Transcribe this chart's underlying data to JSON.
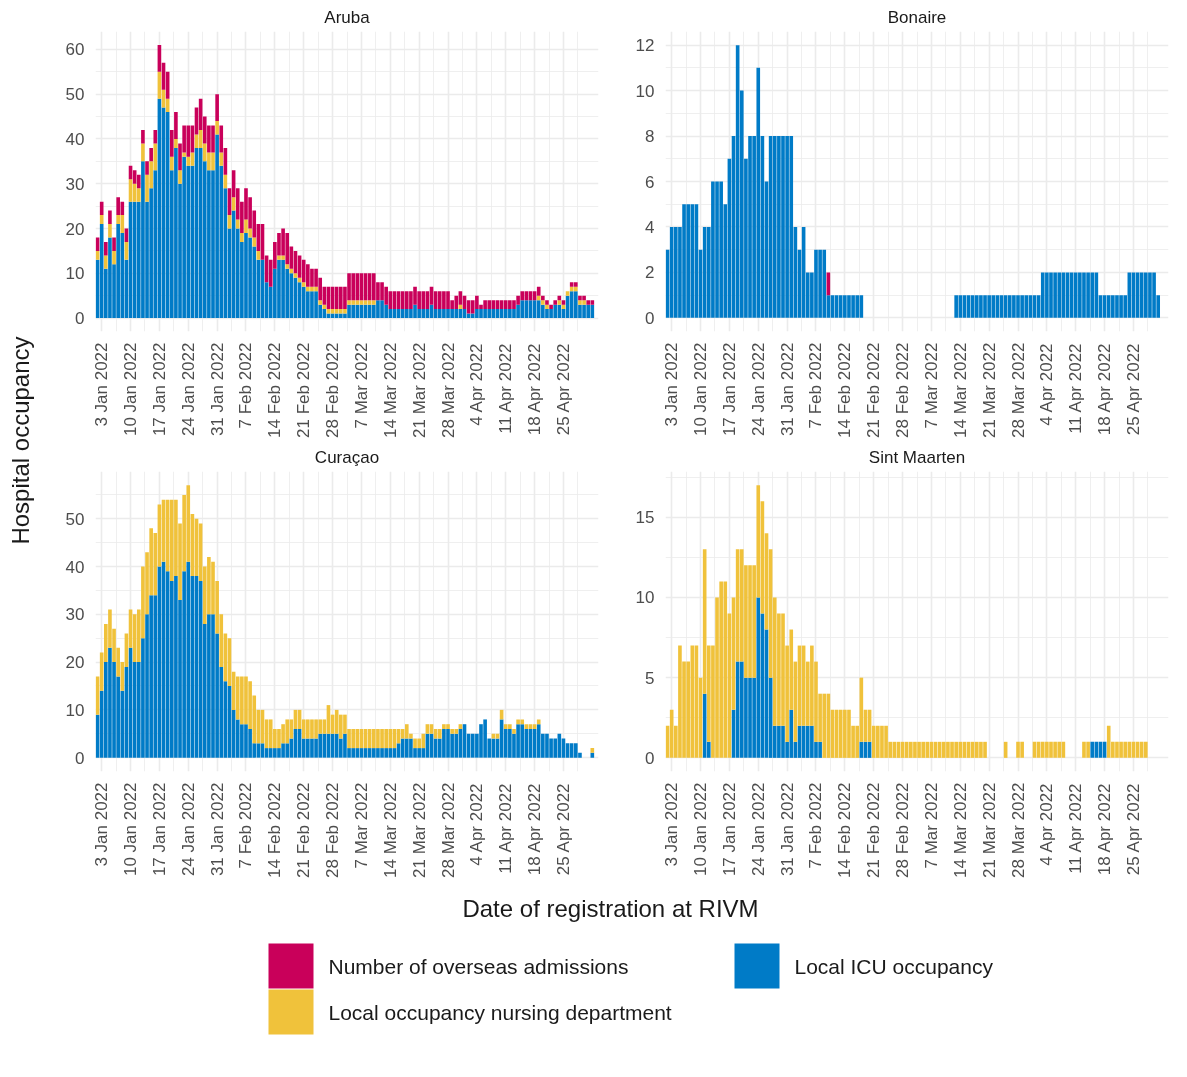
{
  "chart_data": [
    {
      "type": "bar",
      "title": "Aruba",
      "xlabel": "Date of registration at RIVM",
      "ylabel": "Hospital occupancy",
      "stacked": true,
      "grid": true,
      "legend": "bottom",
      "xlim": [
        "2022-01-01T12:00",
        "2022-05-03T12:00"
      ],
      "ylim": [
        -3,
        64
      ],
      "yticks": [
        0,
        10,
        20,
        30,
        40,
        50,
        60
      ],
      "xticks": [
        {
          "value": "2022-01-03",
          "label": "3 Jan 2022"
        },
        {
          "value": "2022-01-10",
          "label": "10 Jan 2022"
        },
        {
          "value": "2022-01-17",
          "label": "17 Jan 2022"
        },
        {
          "value": "2022-01-24",
          "label": "24 Jan 2022"
        },
        {
          "value": "2022-01-31",
          "label": "31 Jan 2022"
        },
        {
          "value": "2022-02-07",
          "label": "7 Feb 2022"
        },
        {
          "value": "2022-02-14",
          "label": "14 Feb 2022"
        },
        {
          "value": "2022-02-21",
          "label": "21 Feb 2022"
        },
        {
          "value": "2022-02-28",
          "label": "28 Feb 2022"
        },
        {
          "value": "2022-03-07",
          "label": "7 Mar 2022"
        },
        {
          "value": "2022-03-14",
          "label": "14 Mar 2022"
        },
        {
          "value": "2022-03-21",
          "label": "21 Mar 2022"
        },
        {
          "value": "2022-03-28",
          "label": "28 Mar 2022"
        },
        {
          "value": "2022-04-04",
          "label": "4 Apr 2022"
        },
        {
          "value": "2022-04-11",
          "label": "11 Apr 2022"
        },
        {
          "value": "2022-04-18",
          "label": "18 Apr 2022"
        },
        {
          "value": "2022-04-25",
          "label": "25 Apr 2022"
        }
      ],
      "x": [
        "2022-01-02",
        "2022-01-03",
        "2022-01-04",
        "2022-01-05",
        "2022-01-06",
        "2022-01-07",
        "2022-01-08",
        "2022-01-09",
        "2022-01-10",
        "2022-01-11",
        "2022-01-12",
        "2022-01-13",
        "2022-01-14",
        "2022-01-15",
        "2022-01-16",
        "2022-01-17",
        "2022-01-18",
        "2022-01-19",
        "2022-01-20",
        "2022-01-21",
        "2022-01-22",
        "2022-01-23",
        "2022-01-24",
        "2022-01-25",
        "2022-01-26",
        "2022-01-27",
        "2022-01-28",
        "2022-01-29",
        "2022-01-30",
        "2022-01-31",
        "2022-02-01",
        "2022-02-02",
        "2022-02-03",
        "2022-02-04",
        "2022-02-05",
        "2022-02-06",
        "2022-02-07",
        "2022-02-08",
        "2022-02-09",
        "2022-02-10",
        "2022-02-11",
        "2022-02-12",
        "2022-02-13",
        "2022-02-14",
        "2022-02-15",
        "2022-02-16",
        "2022-02-17",
        "2022-02-18",
        "2022-02-19",
        "2022-02-20",
        "2022-02-21",
        "2022-02-22",
        "2022-02-23",
        "2022-02-24",
        "2022-02-25",
        "2022-02-26",
        "2022-02-27",
        "2022-02-28",
        "2022-03-01",
        "2022-03-02",
        "2022-03-03",
        "2022-03-04",
        "2022-03-05",
        "2022-03-06",
        "2022-03-07",
        "2022-03-08",
        "2022-03-09",
        "2022-03-10",
        "2022-03-11",
        "2022-03-12",
        "2022-03-13",
        "2022-03-14",
        "2022-03-15",
        "2022-03-16",
        "2022-03-17",
        "2022-03-18",
        "2022-03-19",
        "2022-03-20",
        "2022-03-21",
        "2022-03-22",
        "2022-03-23",
        "2022-03-24",
        "2022-03-25",
        "2022-03-26",
        "2022-03-27",
        "2022-03-28",
        "2022-03-29",
        "2022-03-30",
        "2022-03-31",
        "2022-04-01",
        "2022-04-02",
        "2022-04-03",
        "2022-04-04",
        "2022-04-05",
        "2022-04-06",
        "2022-04-07",
        "2022-04-08",
        "2022-04-09",
        "2022-04-10",
        "2022-04-11",
        "2022-04-12",
        "2022-04-13",
        "2022-04-14",
        "2022-04-15",
        "2022-04-16",
        "2022-04-17",
        "2022-04-18",
        "2022-04-19",
        "2022-04-20",
        "2022-04-21",
        "2022-04-22",
        "2022-04-23",
        "2022-04-24",
        "2022-04-25",
        "2022-04-26",
        "2022-04-27",
        "2022-04-28",
        "2022-04-29",
        "2022-04-30",
        "2022-05-01",
        "2022-05-02"
      ],
      "series": [
        {
          "name": "Local ICU occupancy",
          "color": "#007bc7",
          "values": [
            13,
            21,
            11,
            18,
            12,
            21,
            19,
            13,
            26,
            26,
            26,
            35,
            26,
            29,
            33,
            49,
            47,
            46,
            33,
            38,
            30,
            36,
            34,
            34,
            38,
            38,
            35,
            33,
            33,
            41,
            34,
            29,
            20,
            24,
            20,
            17,
            19,
            18,
            16,
            13,
            13,
            8,
            7,
            11,
            13,
            13,
            11,
            10,
            9,
            8,
            7,
            6,
            6,
            6,
            3,
            2,
            1,
            1,
            1,
            1,
            1,
            3,
            3,
            3,
            3,
            3,
            3,
            3,
            4,
            4,
            3,
            2,
            2,
            2,
            2,
            2,
            2,
            3,
            2,
            2,
            2,
            3,
            2,
            2,
            2,
            2,
            2,
            2,
            2,
            2,
            1,
            1,
            2,
            2,
            2,
            2,
            2,
            2,
            2,
            2,
            2,
            2,
            3,
            4,
            4,
            4,
            4,
            4,
            3,
            2,
            2,
            3,
            3,
            2,
            5,
            6,
            6,
            3,
            3,
            3,
            3
          ]
        },
        {
          "name": "Local occupancy nursing department",
          "color": "#f0c23b",
          "values": [
            2,
            2,
            3,
            3,
            3,
            2,
            4,
            4,
            5,
            4,
            3,
            4,
            6,
            6,
            6,
            6,
            4,
            3,
            3,
            2,
            3,
            1,
            2,
            3,
            3,
            4,
            4,
            4,
            4,
            3,
            3,
            3,
            3,
            3,
            2,
            2,
            3,
            2,
            2,
            2,
            null,
            null,
            null,
            null,
            1,
            1,
            1,
            1,
            1,
            1,
            1,
            1,
            1,
            1,
            1,
            1,
            1,
            1,
            1,
            1,
            1,
            1,
            1,
            1,
            1,
            1,
            1,
            1,
            null,
            null,
            null,
            null,
            null,
            null,
            null,
            null,
            null,
            null,
            null,
            null,
            null,
            null,
            null,
            null,
            null,
            null,
            null,
            null,
            1,
            null,
            null,
            null,
            null,
            null,
            null,
            null,
            null,
            null,
            null,
            null,
            null,
            null,
            null,
            null,
            null,
            null,
            null,
            1,
            1,
            1,
            null,
            null,
            1,
            1,
            1,
            1,
            1,
            1,
            1,
            null,
            null
          ]
        },
        {
          "name": "Number of overseas admissions",
          "color": "#c9005a",
          "values": [
            3,
            3,
            3,
            3,
            3,
            4,
            3,
            3,
            3,
            3,
            3,
            3,
            3,
            3,
            3,
            6,
            6,
            6,
            6,
            6,
            6,
            6,
            7,
            6,
            6,
            7,
            6,
            6,
            6,
            6,
            6,
            6,
            6,
            6,
            7,
            7,
            7,
            7,
            6,
            6,
            8,
            6,
            6,
            6,
            5,
            6,
            7,
            5,
            5,
            5,
            5,
            5,
            4,
            4,
            5,
            4,
            5,
            5,
            5,
            5,
            5,
            6,
            6,
            6,
            6,
            6,
            6,
            6,
            4,
            4,
            4,
            4,
            4,
            4,
            4,
            4,
            4,
            4,
            4,
            4,
            4,
            4,
            4,
            4,
            4,
            4,
            2,
            3,
            3,
            3,
            3,
            3,
            3,
            1,
            2,
            2,
            2,
            2,
            2,
            2,
            2,
            2,
            2,
            2,
            2,
            2,
            2,
            2,
            1,
            1,
            1,
            1,
            1,
            1,
            null,
            1,
            1,
            1,
            1,
            1,
            1
          ]
        }
      ]
    },
    {
      "type": "bar",
      "title": "Bonaire",
      "stacked": true,
      "grid": true,
      "xlim": [
        "2022-01-01T12:00",
        "2022-05-03T12:00"
      ],
      "ylim": [
        -0.6,
        12.6
      ],
      "yticks": [
        0,
        2,
        4,
        6,
        8,
        10,
        12
      ],
      "xticks": [
        {
          "value": "2022-01-03",
          "label": "3 Jan 2022"
        },
        {
          "value": "2022-01-10",
          "label": "10 Jan 2022"
        },
        {
          "value": "2022-01-17",
          "label": "17 Jan 2022"
        },
        {
          "value": "2022-01-24",
          "label": "24 Jan 2022"
        },
        {
          "value": "2022-01-31",
          "label": "31 Jan 2022"
        },
        {
          "value": "2022-02-07",
          "label": "7 Feb 2022"
        },
        {
          "value": "2022-02-14",
          "label": "14 Feb 2022"
        },
        {
          "value": "2022-02-21",
          "label": "21 Feb 2022"
        },
        {
          "value": "2022-02-28",
          "label": "28 Feb 2022"
        },
        {
          "value": "2022-03-07",
          "label": "7 Mar 2022"
        },
        {
          "value": "2022-03-14",
          "label": "14 Mar 2022"
        },
        {
          "value": "2022-03-21",
          "label": "21 Mar 2022"
        },
        {
          "value": "2022-03-28",
          "label": "28 Mar 2022"
        },
        {
          "value": "2022-04-04",
          "label": "4 Apr 2022"
        },
        {
          "value": "2022-04-11",
          "label": "11 Apr 2022"
        },
        {
          "value": "2022-04-18",
          "label": "18 Apr 2022"
        },
        {
          "value": "2022-04-25",
          "label": "25 Apr 2022"
        }
      ],
      "x": [
        "2022-01-02",
        "2022-01-03",
        "2022-01-04",
        "2022-01-05",
        "2022-01-06",
        "2022-01-07",
        "2022-01-08",
        "2022-01-09",
        "2022-01-10",
        "2022-01-11",
        "2022-01-12",
        "2022-01-13",
        "2022-01-14",
        "2022-01-15",
        "2022-01-16",
        "2022-01-17",
        "2022-01-18",
        "2022-01-19",
        "2022-01-20",
        "2022-01-21",
        "2022-01-22",
        "2022-01-23",
        "2022-01-24",
        "2022-01-25",
        "2022-01-26",
        "2022-01-27",
        "2022-01-28",
        "2022-01-29",
        "2022-01-30",
        "2022-01-31",
        "2022-02-01",
        "2022-02-02",
        "2022-02-03",
        "2022-02-04",
        "2022-02-05",
        "2022-02-06",
        "2022-02-07",
        "2022-02-08",
        "2022-02-09",
        "2022-02-10",
        "2022-02-11",
        "2022-02-12",
        "2022-02-13",
        "2022-02-14",
        "2022-02-15",
        "2022-02-16",
        "2022-02-17",
        "2022-02-18",
        "2022-02-19",
        "2022-02-20",
        "2022-02-21",
        "2022-02-22",
        "2022-02-23",
        "2022-02-24",
        "2022-02-25",
        "2022-02-26",
        "2022-02-27",
        "2022-02-28",
        "2022-03-01",
        "2022-03-02",
        "2022-03-03",
        "2022-03-04",
        "2022-03-05",
        "2022-03-06",
        "2022-03-07",
        "2022-03-08",
        "2022-03-09",
        "2022-03-10",
        "2022-03-11",
        "2022-03-12",
        "2022-03-13",
        "2022-03-14",
        "2022-03-15",
        "2022-03-16",
        "2022-03-17",
        "2022-03-18",
        "2022-03-19",
        "2022-03-20",
        "2022-03-21",
        "2022-03-22",
        "2022-03-23",
        "2022-03-24",
        "2022-03-25",
        "2022-03-26",
        "2022-03-27",
        "2022-03-28",
        "2022-03-29",
        "2022-03-30",
        "2022-03-31",
        "2022-04-01",
        "2022-04-02",
        "2022-04-03",
        "2022-04-04",
        "2022-04-05",
        "2022-04-06",
        "2022-04-07",
        "2022-04-08",
        "2022-04-09",
        "2022-04-10",
        "2022-04-11",
        "2022-04-12",
        "2022-04-13",
        "2022-04-14",
        "2022-04-15",
        "2022-04-16",
        "2022-04-17",
        "2022-04-18",
        "2022-04-19",
        "2022-04-20",
        "2022-04-21",
        "2022-04-22",
        "2022-04-23",
        "2022-04-24",
        "2022-04-25",
        "2022-04-26",
        "2022-04-27",
        "2022-04-28",
        "2022-04-29",
        "2022-04-30",
        "2022-05-01"
      ],
      "series": [
        {
          "name": "Local ICU occupancy",
          "color": "#007bc7",
          "values": [
            3,
            4,
            4,
            4,
            5,
            5,
            5,
            5,
            3,
            4,
            4,
            6,
            6,
            6,
            5,
            7,
            8,
            12,
            10,
            7,
            8,
            8,
            11,
            8,
            6,
            8,
            8,
            8,
            8,
            8,
            8,
            4,
            3,
            4,
            2,
            2,
            3,
            3,
            3,
            1,
            1,
            1,
            1,
            1,
            1,
            1,
            1,
            1,
            null,
            null,
            null,
            null,
            null,
            null,
            null,
            null,
            null,
            null,
            null,
            null,
            null,
            null,
            null,
            null,
            null,
            null,
            null,
            null,
            null,
            null,
            1,
            1,
            1,
            1,
            1,
            1,
            1,
            1,
            1,
            1,
            1,
            1,
            1,
            1,
            1,
            1,
            1,
            1,
            1,
            1,
            1,
            2,
            2,
            2,
            2,
            2,
            2,
            2,
            2,
            2,
            2,
            2,
            2,
            2,
            2,
            1,
            1,
            1,
            1,
            1,
            1,
            1,
            2,
            2,
            2,
            2,
            2,
            2,
            2,
            1
          ]
        },
        {
          "name": "Number of overseas admissions",
          "color": "#c9005a",
          "values": [
            null,
            null,
            null,
            null,
            null,
            null,
            null,
            null,
            null,
            null,
            null,
            null,
            null,
            null,
            null,
            null,
            null,
            null,
            null,
            null,
            null,
            null,
            null,
            null,
            null,
            null,
            null,
            null,
            null,
            null,
            null,
            null,
            null,
            null,
            null,
            null,
            null,
            null,
            null,
            1,
            null,
            null,
            null,
            null,
            null,
            null,
            null,
            null,
            null,
            null,
            null,
            null,
            null,
            null,
            null,
            null,
            null,
            null,
            null,
            null,
            null,
            null,
            null,
            null,
            null,
            null,
            null,
            null,
            null,
            null,
            null,
            null,
            null,
            null,
            null,
            null,
            null,
            null,
            null,
            null,
            null,
            null,
            null,
            null,
            null,
            null,
            null,
            null,
            null,
            null,
            null,
            null,
            null,
            null,
            null,
            null,
            null,
            null,
            null,
            null,
            null,
            null,
            null,
            null,
            null,
            null,
            null,
            null,
            null,
            null,
            null,
            null,
            null,
            null,
            null,
            null,
            null,
            null,
            null,
            null
          ]
        }
      ]
    },
    {
      "type": "bar",
      "title": "Curaçao",
      "stacked": true,
      "grid": true,
      "xlim": [
        "2022-01-01T12:00",
        "2022-05-03T12:00"
      ],
      "ylim": [
        -2.9,
        59.9
      ],
      "yticks": [
        0,
        10,
        20,
        30,
        40,
        50
      ],
      "xticks": [
        {
          "value": "2022-01-03",
          "label": "3 Jan 2022"
        },
        {
          "value": "2022-01-10",
          "label": "10 Jan 2022"
        },
        {
          "value": "2022-01-17",
          "label": "17 Jan 2022"
        },
        {
          "value": "2022-01-24",
          "label": "24 Jan 2022"
        },
        {
          "value": "2022-01-31",
          "label": "31 Jan 2022"
        },
        {
          "value": "2022-02-07",
          "label": "7 Feb 2022"
        },
        {
          "value": "2022-02-14",
          "label": "14 Feb 2022"
        },
        {
          "value": "2022-02-21",
          "label": "21 Feb 2022"
        },
        {
          "value": "2022-02-28",
          "label": "28 Feb 2022"
        },
        {
          "value": "2022-03-07",
          "label": "7 Mar 2022"
        },
        {
          "value": "2022-03-14",
          "label": "14 Mar 2022"
        },
        {
          "value": "2022-03-21",
          "label": "21 Mar 2022"
        },
        {
          "value": "2022-03-28",
          "label": "28 Mar 2022"
        },
        {
          "value": "2022-04-04",
          "label": "4 Apr 2022"
        },
        {
          "value": "2022-04-11",
          "label": "11 Apr 2022"
        },
        {
          "value": "2022-04-18",
          "label": "18 Apr 2022"
        },
        {
          "value": "2022-04-25",
          "label": "25 Apr 2022"
        }
      ],
      "x": [
        "2022-01-02",
        "2022-01-03",
        "2022-01-04",
        "2022-01-05",
        "2022-01-06",
        "2022-01-07",
        "2022-01-08",
        "2022-01-09",
        "2022-01-10",
        "2022-01-11",
        "2022-01-12",
        "2022-01-13",
        "2022-01-14",
        "2022-01-15",
        "2022-01-16",
        "2022-01-17",
        "2022-01-18",
        "2022-01-19",
        "2022-01-20",
        "2022-01-21",
        "2022-01-22",
        "2022-01-23",
        "2022-01-24",
        "2022-01-25",
        "2022-01-26",
        "2022-01-27",
        "2022-01-28",
        "2022-01-29",
        "2022-01-30",
        "2022-01-31",
        "2022-02-01",
        "2022-02-02",
        "2022-02-03",
        "2022-02-04",
        "2022-02-05",
        "2022-02-06",
        "2022-02-07",
        "2022-02-08",
        "2022-02-09",
        "2022-02-10",
        "2022-02-11",
        "2022-02-12",
        "2022-02-13",
        "2022-02-14",
        "2022-02-15",
        "2022-02-16",
        "2022-02-17",
        "2022-02-18",
        "2022-02-19",
        "2022-02-20",
        "2022-02-21",
        "2022-02-22",
        "2022-02-23",
        "2022-02-24",
        "2022-02-25",
        "2022-02-26",
        "2022-02-27",
        "2022-02-28",
        "2022-03-01",
        "2022-03-02",
        "2022-03-03",
        "2022-03-04",
        "2022-03-05",
        "2022-03-06",
        "2022-03-07",
        "2022-03-08",
        "2022-03-09",
        "2022-03-10",
        "2022-03-11",
        "2022-03-12",
        "2022-03-13",
        "2022-03-14",
        "2022-03-15",
        "2022-03-16",
        "2022-03-17",
        "2022-03-18",
        "2022-03-19",
        "2022-03-20",
        "2022-03-21",
        "2022-03-22",
        "2022-03-23",
        "2022-03-24",
        "2022-03-25",
        "2022-03-26",
        "2022-03-27",
        "2022-03-28",
        "2022-03-29",
        "2022-03-30",
        "2022-03-31",
        "2022-04-01",
        "2022-04-02",
        "2022-04-03",
        "2022-04-04",
        "2022-04-05",
        "2022-04-06",
        "2022-04-07",
        "2022-04-08",
        "2022-04-09",
        "2022-04-10",
        "2022-04-11",
        "2022-04-12",
        "2022-04-13",
        "2022-04-14",
        "2022-04-15",
        "2022-04-16",
        "2022-04-17",
        "2022-04-18",
        "2022-04-19",
        "2022-04-20",
        "2022-04-21",
        "2022-04-22",
        "2022-04-23",
        "2022-04-24",
        "2022-04-25",
        "2022-04-26",
        "2022-04-27",
        "2022-04-28",
        "2022-04-29",
        "2022-04-30",
        "2022-05-01",
        "2022-05-02"
      ],
      "series": [
        {
          "name": "Local ICU occupancy",
          "color": "#007bc7",
          "values": [
            9,
            14,
            20,
            23,
            20,
            17,
            14,
            19,
            23,
            20,
            20,
            25,
            30,
            34,
            34,
            40,
            41,
            39,
            37,
            38,
            33,
            39,
            41,
            38,
            38,
            37,
            28,
            30,
            30,
            26,
            19,
            16,
            15,
            10,
            8,
            7,
            7,
            6,
            3,
            3,
            3,
            2,
            2,
            2,
            2,
            3,
            3,
            4,
            6,
            6,
            4,
            4,
            4,
            4,
            5,
            5,
            5,
            5,
            5,
            4,
            5,
            2,
            2,
            2,
            2,
            2,
            2,
            2,
            2,
            2,
            2,
            2,
            2,
            3,
            4,
            4,
            4,
            2,
            2,
            2,
            5,
            5,
            4,
            4,
            6,
            6,
            5,
            5,
            6,
            7,
            5,
            5,
            5,
            7,
            8,
            4,
            4,
            4,
            8,
            6,
            6,
            5,
            7,
            7,
            6,
            6,
            6,
            7,
            5,
            5,
            4,
            4,
            5,
            4,
            3,
            3,
            3,
            1,
            null,
            null,
            1
          ]
        },
        {
          "name": "Local occupancy nursing department",
          "color": "#f0c23b",
          "values": [
            8,
            8,
            8,
            8,
            7,
            6,
            6,
            7,
            8,
            10,
            11,
            15,
            13,
            14,
            13,
            13,
            13,
            15,
            17,
            16,
            16,
            16,
            16,
            13,
            12,
            12,
            12,
            12,
            11,
            11,
            11,
            10,
            10,
            8,
            9,
            10,
            10,
            10,
            10,
            7,
            7,
            6,
            6,
            4,
            4,
            4,
            5,
            4,
            4,
            4,
            4,
            4,
            4,
            4,
            3,
            3,
            6,
            4,
            5,
            5,
            4,
            4,
            4,
            4,
            4,
            4,
            4,
            4,
            4,
            4,
            4,
            4,
            4,
            3,
            2,
            3,
            1,
            2,
            2,
            3,
            2,
            2,
            2,
            2,
            1,
            1,
            1,
            1,
            1,
            null,
            null,
            null,
            null,
            null,
            null,
            null,
            1,
            1,
            2,
            1,
            1,
            1,
            1,
            1,
            1,
            1,
            1,
            1,
            null,
            null,
            null,
            null,
            null,
            null,
            null,
            null,
            null,
            null,
            null,
            null,
            1
          ]
        }
      ]
    },
    {
      "type": "bar",
      "title": "Sint Maarten",
      "stacked": true,
      "grid": true,
      "xlim": [
        "2022-01-01T12:00",
        "2022-05-03T12:00"
      ],
      "ylim": [
        -0.85,
        17.85
      ],
      "yticks": [
        0,
        5,
        10,
        15
      ],
      "xticks": [
        {
          "value": "2022-01-03",
          "label": "3 Jan 2022"
        },
        {
          "value": "2022-01-10",
          "label": "10 Jan 2022"
        },
        {
          "value": "2022-01-17",
          "label": "17 Jan 2022"
        },
        {
          "value": "2022-01-24",
          "label": "24 Jan 2022"
        },
        {
          "value": "2022-01-31",
          "label": "31 Jan 2022"
        },
        {
          "value": "2022-02-07",
          "label": "7 Feb 2022"
        },
        {
          "value": "2022-02-14",
          "label": "14 Feb 2022"
        },
        {
          "value": "2022-02-21",
          "label": "21 Feb 2022"
        },
        {
          "value": "2022-02-28",
          "label": "28 Feb 2022"
        },
        {
          "value": "2022-03-07",
          "label": "7 Mar 2022"
        },
        {
          "value": "2022-03-14",
          "label": "14 Mar 2022"
        },
        {
          "value": "2022-03-21",
          "label": "21 Mar 2022"
        },
        {
          "value": "2022-03-28",
          "label": "28 Mar 2022"
        },
        {
          "value": "2022-04-04",
          "label": "4 Apr 2022"
        },
        {
          "value": "2022-04-11",
          "label": "11 Apr 2022"
        },
        {
          "value": "2022-04-18",
          "label": "18 Apr 2022"
        },
        {
          "value": "2022-04-25",
          "label": "25 Apr 2022"
        }
      ],
      "x": [
        "2022-01-02",
        "2022-01-03",
        "2022-01-04",
        "2022-01-05",
        "2022-01-06",
        "2022-01-07",
        "2022-01-08",
        "2022-01-09",
        "2022-01-10",
        "2022-01-11",
        "2022-01-12",
        "2022-01-13",
        "2022-01-14",
        "2022-01-15",
        "2022-01-16",
        "2022-01-17",
        "2022-01-18",
        "2022-01-19",
        "2022-01-20",
        "2022-01-21",
        "2022-01-22",
        "2022-01-23",
        "2022-01-24",
        "2022-01-25",
        "2022-01-26",
        "2022-01-27",
        "2022-01-28",
        "2022-01-29",
        "2022-01-30",
        "2022-01-31",
        "2022-02-01",
        "2022-02-02",
        "2022-02-03",
        "2022-02-04",
        "2022-02-05",
        "2022-02-06",
        "2022-02-07",
        "2022-02-08",
        "2022-02-09",
        "2022-02-10",
        "2022-02-11",
        "2022-02-12",
        "2022-02-13",
        "2022-02-14",
        "2022-02-15",
        "2022-02-16",
        "2022-02-17",
        "2022-02-18",
        "2022-02-19",
        "2022-02-20",
        "2022-02-21",
        "2022-02-22",
        "2022-02-23",
        "2022-02-24",
        "2022-02-25",
        "2022-02-26",
        "2022-02-27",
        "2022-02-28",
        "2022-03-01",
        "2022-03-02",
        "2022-03-03",
        "2022-03-04",
        "2022-03-05",
        "2022-03-06",
        "2022-03-07",
        "2022-03-08",
        "2022-03-09",
        "2022-03-10",
        "2022-03-11",
        "2022-03-12",
        "2022-03-13",
        "2022-03-14",
        "2022-03-15",
        "2022-03-16",
        "2022-03-17",
        "2022-03-18",
        "2022-03-19",
        "2022-03-20",
        "2022-03-21",
        "2022-03-22",
        "2022-03-23",
        "2022-03-24",
        "2022-03-25",
        "2022-03-26",
        "2022-03-27",
        "2022-03-28",
        "2022-03-29",
        "2022-03-30",
        "2022-03-31",
        "2022-04-01",
        "2022-04-02",
        "2022-04-03",
        "2022-04-04",
        "2022-04-05",
        "2022-04-06",
        "2022-04-07",
        "2022-04-08",
        "2022-04-09",
        "2022-04-10",
        "2022-04-11",
        "2022-04-12",
        "2022-04-13",
        "2022-04-14",
        "2022-04-15",
        "2022-04-16",
        "2022-04-17",
        "2022-04-18",
        "2022-04-19",
        "2022-04-20",
        "2022-04-21",
        "2022-04-22",
        "2022-04-23",
        "2022-04-24",
        "2022-04-25",
        "2022-04-26",
        "2022-04-27",
        "2022-04-28"
      ],
      "series": [
        {
          "name": "Local ICU occupancy",
          "color": "#007bc7",
          "values": [
            null,
            null,
            null,
            null,
            null,
            null,
            null,
            null,
            null,
            4,
            1,
            null,
            null,
            null,
            null,
            null,
            3,
            6,
            6,
            5,
            5,
            5,
            10,
            9,
            8,
            5,
            2,
            2,
            2,
            1,
            3,
            1,
            2,
            2,
            2,
            2,
            1,
            1,
            null,
            null,
            null,
            null,
            null,
            null,
            null,
            null,
            null,
            1,
            1,
            1,
            null,
            null,
            null,
            null,
            null,
            null,
            null,
            null,
            null,
            null,
            null,
            null,
            null,
            null,
            null,
            null,
            null,
            null,
            null,
            null,
            null,
            null,
            null,
            null,
            null,
            null,
            null,
            null,
            null,
            null,
            null,
            null,
            null,
            null,
            null,
            null,
            null,
            null,
            null,
            null,
            null,
            null,
            null,
            null,
            null,
            null,
            null,
            null,
            null,
            null,
            null,
            null,
            null,
            1,
            1,
            1,
            1,
            null,
            null,
            null,
            null,
            null,
            null,
            null,
            null,
            null,
            null
          ]
        },
        {
          "name": "Local occupancy nursing department",
          "color": "#f0c23b",
          "values": [
            2,
            3,
            2,
            7,
            6,
            6,
            7,
            7,
            5,
            9,
            6,
            7,
            10,
            11,
            11,
            9,
            7,
            7,
            7,
            7,
            7,
            7,
            7,
            7,
            6,
            8,
            8,
            7,
            7,
            6,
            5,
            5,
            5,
            5,
            4,
            5,
            5,
            3,
            4,
            4,
            3,
            3,
            3,
            3,
            3,
            2,
            2,
            4,
            2,
            2,
            2,
            2,
            2,
            2,
            1,
            1,
            1,
            1,
            1,
            1,
            1,
            1,
            1,
            1,
            1,
            1,
            1,
            1,
            1,
            1,
            1,
            1,
            1,
            1,
            1,
            1,
            1,
            1,
            null,
            null,
            null,
            null,
            1,
            null,
            null,
            1,
            1,
            null,
            null,
            1,
            1,
            1,
            1,
            1,
            1,
            1,
            1,
            null,
            null,
            null,
            null,
            1,
            1,
            null,
            null,
            null,
            null,
            2,
            1,
            1,
            1,
            1,
            1,
            1,
            1,
            1,
            1
          ]
        }
      ]
    }
  ]
}
